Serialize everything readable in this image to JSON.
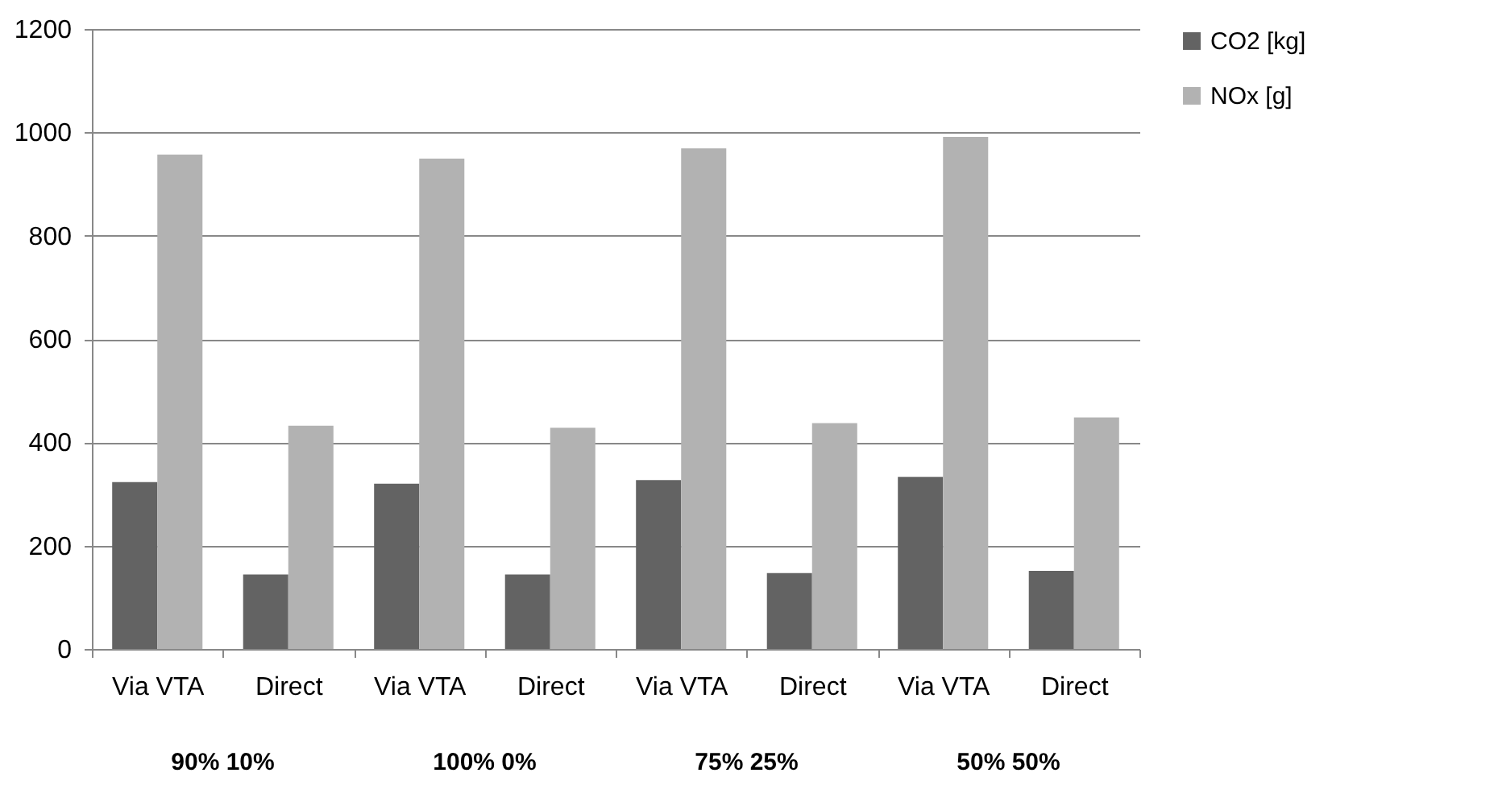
{
  "chart_data": {
    "type": "bar",
    "categories": [
      "Via VTA",
      "Direct",
      "Via VTA",
      "Direct",
      "Via VTA",
      "Direct",
      "Via VTA",
      "Direct"
    ],
    "series": [
      {
        "name": "CO2 [kg]",
        "color": "#636363",
        "values": [
          323,
          144,
          320,
          144,
          327,
          147,
          333,
          151
        ]
      },
      {
        "name": "NOx [g]",
        "color": "#b2b2b2",
        "values": [
          957,
          432,
          949,
          428,
          969,
          437,
          991,
          448
        ]
      }
    ],
    "annotations": [
      "90% 10%",
      "100% 0%",
      "75% 25%",
      "50% 50%"
    ],
    "ylim": [
      0,
      1200
    ],
    "yticks": [
      0,
      200,
      400,
      600,
      800,
      1000,
      1200
    ],
    "grid": "y",
    "legend": "right"
  }
}
